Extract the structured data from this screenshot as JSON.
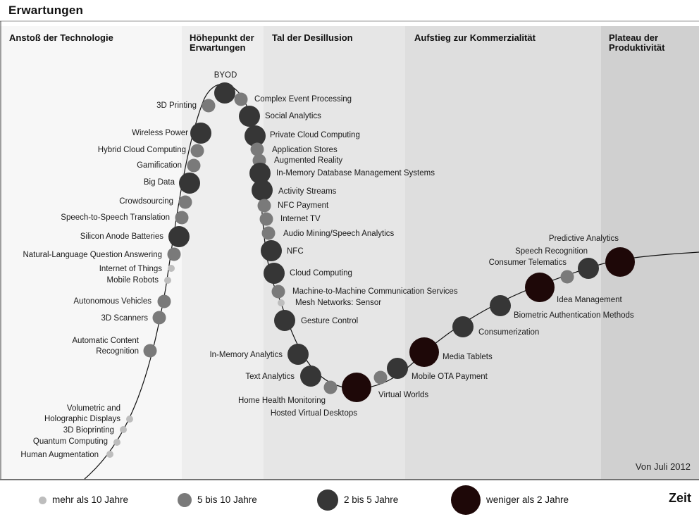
{
  "title_y": "Erwartungen",
  "title_x": "Zeit",
  "note": "Von Juli 2012",
  "colors": {
    "more_than_10": "#bdbdbd",
    "five_to_ten": "#7a7a7a",
    "two_to_five": "#363636",
    "less_than_2": "#1e0808",
    "curve": "#111111"
  },
  "phases": [
    {
      "label": "Anstoß der Technologie",
      "shade": "#f7f7f7"
    },
    {
      "label": "Höhepunkt der\nErwartungen",
      "shade": "#eeeeee"
    },
    {
      "label": "Tal der Desillusion",
      "shade": "#e6e6e6"
    },
    {
      "label": "Aufstieg zur Kommerzialität",
      "shade": "#dedede"
    },
    {
      "label": "Plateau der\nProduktivität",
      "shade": "#d0d0d0"
    }
  ],
  "legend": [
    {
      "key": "more_than_10",
      "label": "mehr als 10 Jahre"
    },
    {
      "key": "five_to_ten",
      "label": "5 bis 10 Jahre"
    },
    {
      "key": "two_to_five",
      "label": "2 bis 5 Jahre"
    },
    {
      "key": "less_than_2",
      "label": "weniger als 2 Jahre"
    }
  ],
  "chart_data": {
    "type": "scatter",
    "title": "Erwartungen",
    "xlabel": "Zeit",
    "ylabel": "Erwartungen",
    "note": "Von Juli 2012",
    "technologies": [
      {
        "name": "Human Augmentation",
        "category": "more_than_10"
      },
      {
        "name": "Quantum Computing",
        "category": "more_than_10"
      },
      {
        "name": "3D Bioprinting",
        "category": "more_than_10"
      },
      {
        "name": "Volumetric and\nHolographic Displays",
        "category": "more_than_10"
      },
      {
        "name": "Automatic Content\nRecognition",
        "category": "five_to_ten"
      },
      {
        "name": "3D Scanners",
        "category": "five_to_ten"
      },
      {
        "name": "Autonomous Vehicles",
        "category": "five_to_ten"
      },
      {
        "name": "Mobile Robots",
        "category": "more_than_10"
      },
      {
        "name": "Internet of Things",
        "category": "more_than_10"
      },
      {
        "name": "Natural-Language Question Answering",
        "category": "five_to_ten"
      },
      {
        "name": "Silicon Anode Batteries",
        "category": "two_to_five"
      },
      {
        "name": "Speech-to-Speech Translation",
        "category": "five_to_ten"
      },
      {
        "name": "Crowdsourcing",
        "category": "five_to_ten"
      },
      {
        "name": "Big Data",
        "category": "two_to_five"
      },
      {
        "name": "Gamification",
        "category": "five_to_ten"
      },
      {
        "name": "Hybrid Cloud Computing",
        "category": "five_to_ten"
      },
      {
        "name": "Wireless Power",
        "category": "two_to_five"
      },
      {
        "name": "3D Printing",
        "category": "five_to_ten"
      },
      {
        "name": "BYOD",
        "category": "two_to_five"
      },
      {
        "name": "Complex Event Processing",
        "category": "five_to_ten"
      },
      {
        "name": "Social Analytics",
        "category": "two_to_five"
      },
      {
        "name": "Private Cloud Computing",
        "category": "two_to_five"
      },
      {
        "name": "Application Stores",
        "category": "five_to_ten"
      },
      {
        "name": "Augmented Reality",
        "category": "five_to_ten"
      },
      {
        "name": "In-Memory Database Management Systems",
        "category": "two_to_five"
      },
      {
        "name": "Activity Streams",
        "category": "two_to_five"
      },
      {
        "name": "NFC Payment",
        "category": "five_to_ten"
      },
      {
        "name": "Internet TV",
        "category": "five_to_ten"
      },
      {
        "name": "Audio Mining/Speech Analytics",
        "category": "five_to_ten"
      },
      {
        "name": "NFC",
        "category": "two_to_five"
      },
      {
        "name": "Cloud Computing",
        "category": "two_to_five"
      },
      {
        "name": "Machine-to-Machine Communication Services",
        "category": "five_to_ten"
      },
      {
        "name": "Mesh Networks: Sensor",
        "category": "more_than_10"
      },
      {
        "name": "Gesture Control",
        "category": "two_to_five"
      },
      {
        "name": "In-Memory Analytics",
        "category": "two_to_five"
      },
      {
        "name": "Text Analytics",
        "category": "two_to_five"
      },
      {
        "name": "Home Health Monitoring",
        "category": "five_to_ten"
      },
      {
        "name": "Hosted Virtual Desktops",
        "category": "less_than_2"
      },
      {
        "name": "Virtual Worlds",
        "category": "five_to_ten"
      },
      {
        "name": "Mobile OTA Payment",
        "category": "two_to_five"
      },
      {
        "name": "Media Tablets",
        "category": "less_than_2"
      },
      {
        "name": "Consumerization",
        "category": "two_to_five"
      },
      {
        "name": "Biometric Authentication Methods",
        "category": "two_to_five"
      },
      {
        "name": "Idea Management",
        "category": "less_than_2"
      },
      {
        "name": "Consumer Telematics",
        "category": "five_to_ten"
      },
      {
        "name": "Speech Recognition",
        "category": "two_to_five"
      },
      {
        "name": "Predictive Analytics",
        "category": "less_than_2"
      }
    ]
  }
}
